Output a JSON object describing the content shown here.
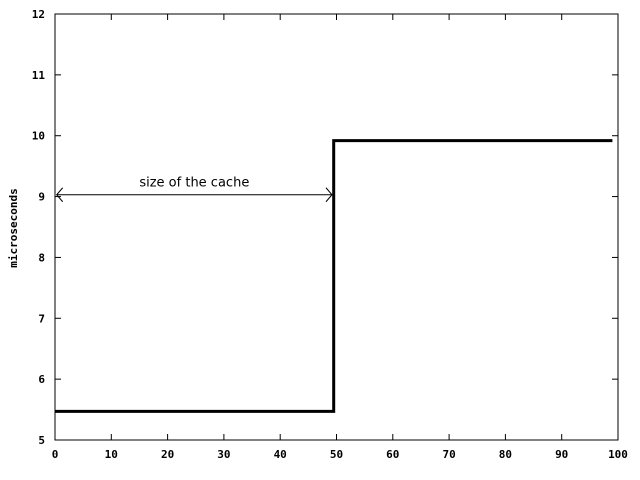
{
  "chart_data": {
    "type": "line",
    "xlabel": "",
    "ylabel": "microseconds",
    "xlim": [
      0,
      100
    ],
    "ylim": [
      5,
      12
    ],
    "xticks": [
      0,
      10,
      20,
      30,
      40,
      50,
      60,
      70,
      80,
      90,
      100
    ],
    "yticks": [
      5,
      6,
      7,
      8,
      9,
      10,
      11,
      12
    ],
    "grid": false,
    "series": [
      {
        "style": "step",
        "x": [
          0,
          49.5,
          49.5,
          99
        ],
        "y": [
          5.47,
          5.47,
          9.92,
          9.92
        ]
      }
    ],
    "annotations": [
      {
        "text": "size of the cache",
        "x_from": 0.3,
        "x_to": 49.2,
        "y": 9.03,
        "style": "double-arrow"
      }
    ]
  }
}
